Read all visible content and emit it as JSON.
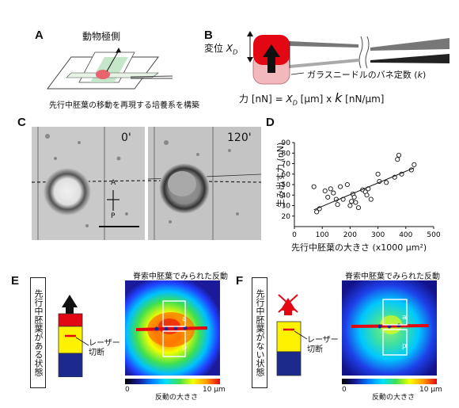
{
  "panels": {
    "a": {
      "label": "A",
      "top_text": "動物極側",
      "caption": "先行中胚葉の移動を再現する培養系を構築"
    },
    "b": {
      "label": "B",
      "displacement": "変位",
      "displacement_sym": "X",
      "displacement_sub": "D",
      "needle_text": "ガラスニードルのバネ定数 (",
      "needle_k": "k",
      "needle_close": ")",
      "eq_force": "力 [nN] = ",
      "eq_xd": "X",
      "eq_xd_sub": "D",
      "eq_um": " [μm]  x  ",
      "eq_k": "k",
      "eq_unit": " [nN/μm]"
    },
    "c": {
      "label": "C",
      "time1": "0'",
      "time2": "120'",
      "marker_a": "A",
      "marker_p": "P"
    },
    "d": {
      "label": "D"
    },
    "e": {
      "label": "E",
      "side_text": "先行中胚葉がある状態",
      "laser": "レーザー\n切断",
      "map_title": "脊索中胚葉でみられた反動",
      "tag_a": "a",
      "tag_p": "p"
    },
    "f": {
      "label": "F",
      "side_text": "先行中胚葉がない状態",
      "laser": "レーザー\n切断",
      "map_title": "脊索中胚葉でみられた反動",
      "tag_a": "a",
      "tag_p": "p"
    },
    "colorbar": {
      "min": "0",
      "max": "10 μm",
      "label": "反動の大きさ"
    }
  },
  "colors": {
    "red": "#e30613",
    "yellow": "#fff200",
    "navy": "#1b2a8c",
    "pink": "#f2b8bc"
  },
  "chart_data": {
    "type": "scatter",
    "xlabel": "先行中胚葉の大きさ (x1000 μm²)",
    "ylabel": "生み出す力 (nN)",
    "xlim": [
      0,
      500
    ],
    "ylim": [
      10,
      90
    ],
    "xticks": [
      0,
      100,
      200,
      300,
      400,
      500
    ],
    "yticks": [
      20,
      30,
      40,
      50,
      60,
      70,
      80,
      90
    ],
    "points": [
      [
        70,
        48
      ],
      [
        80,
        24
      ],
      [
        90,
        27
      ],
      [
        110,
        44
      ],
      [
        120,
        38
      ],
      [
        130,
        46
      ],
      [
        140,
        42
      ],
      [
        150,
        36
      ],
      [
        155,
        31
      ],
      [
        165,
        48
      ],
      [
        175,
        36
      ],
      [
        190,
        50
      ],
      [
        200,
        30
      ],
      [
        205,
        34
      ],
      [
        210,
        41
      ],
      [
        215,
        38
      ],
      [
        220,
        33
      ],
      [
        230,
        28
      ],
      [
        245,
        45
      ],
      [
        255,
        43
      ],
      [
        260,
        40
      ],
      [
        265,
        46
      ],
      [
        275,
        36
      ],
      [
        300,
        60
      ],
      [
        305,
        53
      ],
      [
        330,
        52
      ],
      [
        360,
        57
      ],
      [
        370,
        74
      ],
      [
        375,
        78
      ],
      [
        385,
        60
      ],
      [
        420,
        64
      ],
      [
        430,
        69
      ]
    ],
    "fit": [
      [
        70,
        26
      ],
      [
        430,
        66
      ]
    ]
  }
}
